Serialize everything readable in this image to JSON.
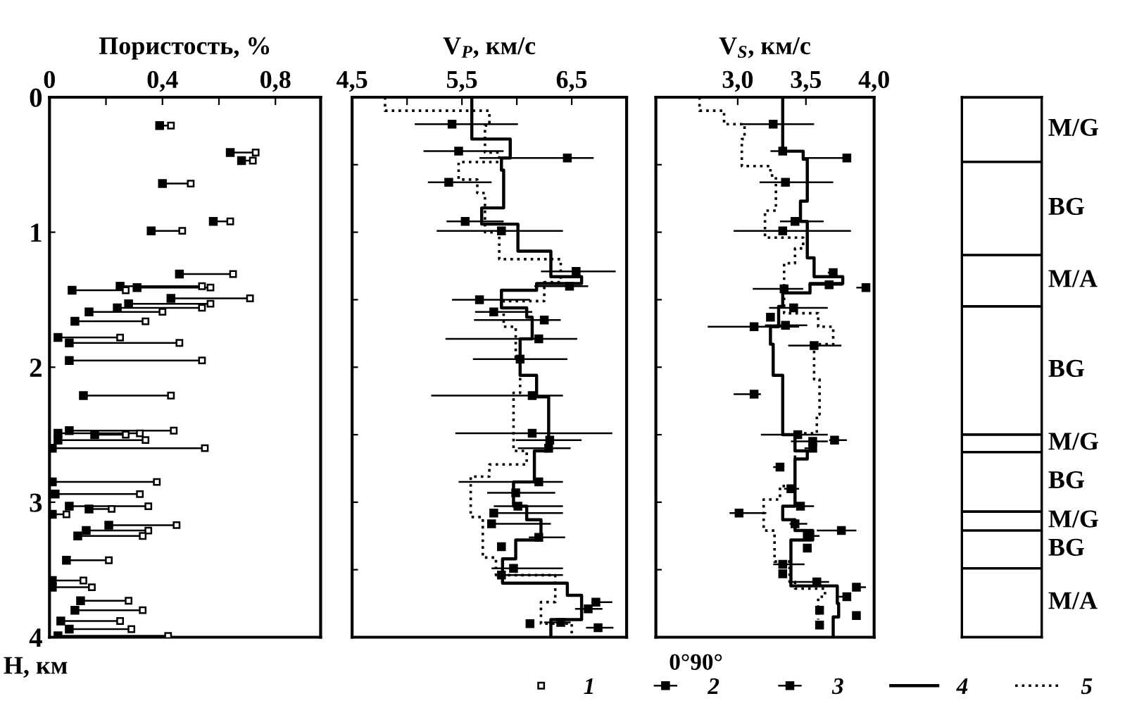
{
  "chart_data": [
    {
      "type": "scatter",
      "title": "Пористость, %",
      "ylabel": "H, км",
      "xlim": [
        0,
        0.96
      ],
      "xticks": [
        0,
        {
          "value": 0.2,
          "label": null
        },
        {
          "value": 0.4,
          "label": "0,4"
        },
        {
          "value": 0.6,
          "label": null
        },
        {
          "value": 0.8,
          "label": "0,8"
        }
      ],
      "ylim": [
        4,
        0
      ],
      "yticks": [
        0,
        1,
        2,
        3,
        4
      ],
      "legend": "bottom",
      "grid": false,
      "series": [
        {
          "name": "1",
          "color": "#ffffff",
          "marker": "square",
          "x": [
            0.43,
            0.73,
            0.72,
            0.5,
            0.64,
            0.47,
            0.65,
            0.54,
            0.57,
            0.27,
            0.71,
            0.57,
            0.54,
            0.4,
            0.34,
            0.25,
            0.46,
            0.54,
            0.43,
            0.44,
            0.32,
            0.27,
            0.34,
            0.55,
            0.38,
            0.32,
            0.35,
            0.22,
            0.06,
            0.45,
            0.35,
            0.33,
            0.21,
            0.12,
            0.15,
            0.28,
            0.33,
            0.25,
            0.29,
            0.42
          ],
          "values": [
            0.21,
            0.41,
            0.47,
            0.64,
            0.92,
            0.99,
            1.31,
            1.4,
            1.41,
            1.43,
            1.49,
            1.53,
            1.56,
            1.59,
            1.66,
            1.78,
            1.82,
            1.95,
            2.21,
            2.47,
            2.49,
            2.5,
            2.54,
            2.6,
            2.85,
            2.94,
            3.03,
            3.05,
            3.09,
            3.17,
            3.21,
            3.25,
            3.43,
            3.58,
            3.63,
            3.73,
            3.8,
            3.88,
            3.94,
            3.99
          ]
        },
        {
          "name": "2",
          "color": "#000000",
          "marker": "square",
          "x": [
            0.39,
            0.64,
            0.68,
            0.4,
            0.58,
            0.36,
            0.46,
            0.25,
            0.31,
            0.08,
            0.43,
            0.28,
            0.24,
            0.14,
            0.09,
            0.03,
            0.07,
            0.07,
            0.12,
            0.07,
            0.03,
            0.16,
            0.03,
            0.01,
            0.01,
            0.02,
            0.07,
            0.14,
            0.01,
            0.21,
            0.13,
            0.1,
            0.06,
            0.01,
            0.01,
            0.11,
            0.09,
            0.04,
            0.07,
            0.03
          ],
          "values": [
            0.21,
            0.41,
            0.47,
            0.64,
            0.92,
            0.99,
            1.31,
            1.4,
            1.41,
            1.43,
            1.49,
            1.53,
            1.56,
            1.59,
            1.66,
            1.78,
            1.82,
            1.95,
            2.21,
            2.47,
            2.49,
            2.5,
            2.54,
            2.6,
            2.85,
            2.94,
            3.03,
            3.05,
            3.09,
            3.17,
            3.21,
            3.25,
            3.43,
            3.58,
            3.63,
            3.73,
            3.8,
            3.88,
            3.94,
            3.99
          ],
          "xerrors": [
            [
              0.39,
              0.43
            ],
            [
              0.64,
              0.73
            ],
            [
              0.68,
              0.72
            ],
            [
              0.4,
              0.5
            ],
            [
              0.58,
              0.64
            ],
            [
              0.36,
              0.47
            ],
            [
              0.46,
              0.65
            ],
            [
              0.25,
              0.54
            ],
            [
              0.31,
              0.57
            ],
            [
              0.08,
              0.27
            ],
            [
              0.43,
              0.71
            ],
            [
              0.28,
              0.57
            ],
            [
              0.24,
              0.54
            ],
            [
              0.14,
              0.4
            ],
            [
              0.09,
              0.34
            ],
            [
              0.03,
              0.25
            ],
            [
              0.07,
              0.46
            ],
            [
              0.07,
              0.54
            ],
            [
              0.12,
              0.43
            ],
            [
              0.07,
              0.44
            ],
            [
              0.03,
              0.32
            ],
            [
              0.16,
              0.27
            ],
            [
              0.03,
              0.34
            ],
            [
              0.01,
              0.55
            ],
            [
              0.01,
              0.38
            ],
            [
              0.02,
              0.32
            ],
            [
              0.07,
              0.35
            ],
            [
              0.14,
              0.22
            ],
            [
              0.01,
              0.06
            ],
            [
              0.21,
              0.45
            ],
            [
              0.13,
              0.35
            ],
            [
              0.1,
              0.33
            ],
            [
              0.06,
              0.21
            ],
            [
              0.01,
              0.12
            ],
            [
              0.01,
              0.15
            ],
            [
              0.11,
              0.28
            ],
            [
              0.09,
              0.33
            ],
            [
              0.04,
              0.25
            ],
            [
              0.07,
              0.29
            ],
            [
              0.03,
              0.42
            ]
          ]
        }
      ]
    },
    {
      "type": "scatter",
      "title": "V$_{P}$, км/с",
      "xlim": [
        4.5,
        7.0
      ],
      "xticks": [
        {
          "value": 4.5,
          "label": "4,5"
        },
        {
          "value": 5.0,
          "label": null
        },
        {
          "value": 5.5,
          "label": "5,5"
        },
        {
          "value": 6.0,
          "label": null
        },
        {
          "value": 6.5,
          "label": "6,5"
        }
      ],
      "ylim": [
        4,
        0
      ],
      "tick_labels": "x",
      "legend": "bottom",
      "grid": false,
      "series": [
        {
          "name": "3",
          "type": "scatter",
          "color": "#000000",
          "marker": "square",
          "x": [
            5.41,
            5.47,
            6.46,
            5.38,
            5.53,
            5.86,
            6.54,
            6.48,
            5.66,
            5.79,
            6.25,
            6.2,
            6.03,
            6.14,
            6.14,
            6.3,
            6.29,
            6.2,
            5.99,
            6.01,
            5.79,
            5.77,
            6.2,
            5.86,
            5.97,
            5.86,
            6.72,
            6.65,
            6.4,
            6.74,
            6.12
          ],
          "values": [
            0.2,
            0.4,
            0.45,
            0.63,
            0.92,
            0.99,
            1.29,
            1.4,
            1.5,
            1.59,
            1.65,
            1.79,
            1.94,
            2.21,
            2.49,
            2.54,
            2.6,
            2.85,
            2.93,
            3.03,
            3.08,
            3.16,
            3.26,
            3.33,
            3.49,
            3.54,
            3.74,
            3.79,
            3.89,
            3.93,
            3.9
          ],
          "xerrors": [
            [
              5.07,
              6.01
            ],
            [
              5.15,
              5.88
            ],
            [
              5.66,
              6.7
            ],
            [
              5.19,
              5.77
            ],
            [
              5.36,
              5.88
            ],
            [
              5.27,
              6.42
            ],
            [
              6.22,
              6.9
            ],
            [
              6.16,
              6.65
            ],
            [
              5.41,
              6.12
            ],
            [
              5.62,
              6.14
            ],
            [
              5.61,
              6.4
            ],
            [
              5.35,
              6.55
            ],
            [
              5.6,
              6.46
            ],
            [
              5.22,
              6.42
            ],
            [
              5.44,
              6.87
            ],
            [
              5.99,
              6.59
            ],
            [
              6.01,
              6.49
            ],
            [
              5.47,
              6.42
            ],
            [
              5.73,
              6.35
            ],
            [
              5.79,
              6.42
            ],
            [
              5.77,
              6.42
            ],
            [
              5.77,
              6.31
            ],
            [
              6.11,
              6.44
            ],
            null,
            [
              5.77,
              6.42
            ],
            [
              5.83,
              6.42
            ],
            [
              6.68,
              6.87
            ],
            [
              6.53,
              6.78
            ],
            [
              6.25,
              6.49
            ],
            [
              6.63,
              6.88
            ],
            null
          ]
        },
        {
          "name": "4",
          "type": "line",
          "color": "#000000",
          "line_style": "solid",
          "marker": "none",
          "x": [
            5.59,
            5.59,
            5.94,
            5.94,
            5.86,
            5.86,
            5.88,
            5.88,
            5.68,
            5.68,
            6.01,
            6.01,
            6.31,
            6.31,
            6.59,
            6.59,
            6.18,
            6.18,
            5.86,
            5.86,
            6.09,
            6.09,
            6.14,
            6.14,
            6.03,
            6.03,
            6.18,
            6.18,
            6.29,
            6.29,
            6.16,
            6.16,
            5.97,
            5.97,
            6.09,
            6.09,
            6.22,
            6.22,
            5.99,
            5.99,
            5.87,
            5.87,
            6.46,
            6.46,
            6.59,
            6.59,
            6.31,
            6.31
          ],
          "values": [
            0,
            0.31,
            0.31,
            0.45,
            0.45,
            0.54,
            0.54,
            0.82,
            0.82,
            0.94,
            0.94,
            1.14,
            1.14,
            1.33,
            1.33,
            1.38,
            1.38,
            1.43,
            1.43,
            1.56,
            1.56,
            1.63,
            1.63,
            1.79,
            1.79,
            2.06,
            2.06,
            2.22,
            2.22,
            2.62,
            2.62,
            2.85,
            2.85,
            3.03,
            3.03,
            3.13,
            3.13,
            3.28,
            3.28,
            3.42,
            3.42,
            3.6,
            3.6,
            3.69,
            3.69,
            3.87,
            3.87,
            4.0
          ]
        },
        {
          "name": "5",
          "type": "line",
          "color": "#000000",
          "line_style": "dotted",
          "marker": "none",
          "x": [
            4.8,
            4.8,
            5.75,
            5.75,
            5.71,
            5.71,
            5.84,
            5.84,
            5.47,
            5.47,
            5.64,
            5.64,
            5.71,
            5.71,
            5.84,
            5.84,
            6.4,
            6.4,
            6.25,
            6.25,
            5.88,
            5.88,
            5.99,
            5.99,
            6.03,
            6.03,
            5.97,
            5.97,
            6.09,
            6.09,
            5.75,
            5.75,
            5.58,
            5.58,
            5.69,
            5.69,
            5.81,
            5.81,
            6.35,
            6.35,
            6.22,
            6.22,
            6.5,
            6.5
          ],
          "values": [
            0,
            0.1,
            0.1,
            0.21,
            0.21,
            0.41,
            0.41,
            0.48,
            0.48,
            0.61,
            0.61,
            0.71,
            0.71,
            1.0,
            1.0,
            1.2,
            1.2,
            1.37,
            1.37,
            1.51,
            1.51,
            1.7,
            1.7,
            1.93,
            1.93,
            2.19,
            2.19,
            2.62,
            2.62,
            2.72,
            2.72,
            2.81,
            2.81,
            3.11,
            3.11,
            3.41,
            3.41,
            3.54,
            3.54,
            3.74,
            3.74,
            3.9,
            3.9,
            4.0
          ]
        }
      ]
    },
    {
      "type": "scatter",
      "title": "V$_{S}$, км/с",
      "xlim": [
        2.4,
        4.0
      ],
      "xticks": [
        {
          "value": 3.0,
          "label": "3,0"
        },
        {
          "value": 3.5,
          "label": "3,5"
        },
        {
          "value": 4.0,
          "label": "4,0"
        }
      ],
      "ylim": [
        4,
        0
      ],
      "tick_labels": "x",
      "grid": false,
      "annotations": [
        "0°90°"
      ],
      "series": [
        {
          "type": "scatter",
          "color": "#000000",
          "marker": "square",
          "x": [
            3.26,
            3.33,
            3.8,
            3.35,
            3.42,
            3.33,
            3.7,
            3.67,
            3.94,
            3.34,
            3.41,
            3.24,
            3.12,
            3.35,
            3.56,
            3.12,
            3.44,
            3.55,
            3.71,
            3.55,
            3.31,
            3.39,
            3.46,
            3.01,
            3.42,
            3.76,
            3.51,
            3.51,
            3.33,
            3.33,
            3.58,
            3.87,
            3.8,
            3.6,
            3.87,
            3.6
          ],
          "values": [
            0.2,
            0.4,
            0.45,
            0.63,
            0.92,
            0.99,
            1.3,
            1.39,
            1.41,
            1.42,
            1.56,
            1.63,
            1.7,
            1.69,
            1.84,
            2.2,
            2.5,
            2.55,
            2.54,
            2.6,
            2.74,
            2.9,
            3.03,
            3.08,
            3.16,
            3.21,
            3.25,
            3.34,
            3.46,
            3.53,
            3.59,
            3.63,
            3.7,
            3.8,
            3.84,
            3.91
          ],
          "xerrors": [
            [
              3.03,
              3.56
            ],
            [
              3.24,
              3.48
            ],
            [
              3.48,
              3.83
            ],
            [
              3.16,
              3.7
            ],
            [
              3.31,
              3.63
            ],
            [
              2.97,
              3.83
            ],
            [
              3.66,
              3.72
            ],
            [
              3.52,
              3.77
            ],
            [
              3.87,
              3.96
            ],
            [
              3.11,
              3.48
            ],
            [
              3.23,
              3.66
            ],
            null,
            [
              2.78,
              3.45
            ],
            [
              3.2,
              3.51
            ],
            [
              3.37,
              3.76
            ],
            [
              2.97,
              3.17
            ],
            [
              3.17,
              3.66
            ],
            [
              3.39,
              3.66
            ],
            [
              3.67,
              3.8
            ],
            [
              3.49,
              3.56
            ],
            [
              3.26,
              3.34
            ],
            [
              3.34,
              3.45
            ],
            [
              3.42,
              3.56
            ],
            [
              2.94,
              3.21
            ],
            [
              3.38,
              3.51
            ],
            [
              3.58,
              3.87
            ],
            [
              3.48,
              3.6
            ],
            null,
            [
              3.26,
              3.49
            ],
            null,
            [
              3.39,
              3.67
            ],
            [
              3.85,
              3.94
            ],
            [
              3.74,
              3.83
            ],
            null,
            null,
            null
          ]
        },
        {
          "type": "line",
          "color": "#000000",
          "line_style": "solid",
          "marker": "none",
          "x": [
            3.33,
            3.33,
            3.48,
            3.48,
            3.51,
            3.51,
            3.46,
            3.46,
            3.51,
            3.51,
            3.56,
            3.56,
            3.77,
            3.77,
            3.53,
            3.53,
            3.33,
            3.33,
            3.3,
            3.3,
            3.24,
            3.24,
            3.26,
            3.26,
            3.33,
            3.33,
            3.42,
            3.42,
            3.51,
            3.51,
            3.42,
            3.42,
            3.33,
            3.33,
            3.42,
            3.42,
            3.55,
            3.55,
            3.39,
            3.39,
            3.73,
            3.73,
            3.74,
            3.74,
            3.7,
            3.7
          ],
          "values": [
            0,
            0.4,
            0.4,
            0.46,
            0.46,
            0.77,
            0.77,
            0.92,
            0.92,
            1.19,
            1.19,
            1.33,
            1.33,
            1.38,
            1.38,
            1.45,
            1.45,
            1.55,
            1.55,
            1.7,
            1.7,
            1.83,
            1.83,
            2.06,
            2.06,
            2.5,
            2.5,
            2.62,
            2.62,
            2.68,
            2.68,
            3.03,
            3.03,
            3.13,
            3.13,
            3.21,
            3.21,
            3.28,
            3.28,
            3.62,
            3.62,
            3.75,
            3.75,
            3.85,
            3.85,
            4.0
          ]
        },
        {
          "type": "line",
          "color": "#000000",
          "line_style": "dotted",
          "marker": "none",
          "x": [
            2.72,
            2.72,
            2.9,
            2.9,
            3.05,
            3.05,
            3.03,
            3.03,
            3.24,
            3.24,
            3.28,
            3.28,
            3.2,
            3.2,
            3.48,
            3.48,
            3.42,
            3.42,
            3.34,
            3.34,
            3.59,
            3.59,
            3.7,
            3.7,
            3.56,
            3.56,
            3.6,
            3.6,
            3.58,
            3.58,
            3.42,
            3.42,
            3.31,
            3.31,
            3.19,
            3.19,
            3.27,
            3.27,
            3.38,
            3.38,
            3.42,
            3.42,
            3.64,
            3.64,
            3.59,
            3.59
          ],
          "values": [
            0,
            0.1,
            0.1,
            0.2,
            0.2,
            0.31,
            0.31,
            0.51,
            0.51,
            0.58,
            0.58,
            0.84,
            0.84,
            1.04,
            1.04,
            1.12,
            1.12,
            1.23,
            1.23,
            1.6,
            1.6,
            1.7,
            1.7,
            1.83,
            1.83,
            2.09,
            2.09,
            2.35,
            2.35,
            2.49,
            2.49,
            2.88,
            2.88,
            2.98,
            2.98,
            3.21,
            3.21,
            3.44,
            3.44,
            3.59,
            3.59,
            3.64,
            3.64,
            3.7,
            3.7,
            3.87
          ]
        }
      ]
    },
    {
      "type": "bar",
      "stacked": true,
      "categories": [
        null
      ],
      "ylim": [
        4,
        0
      ],
      "tick_labels": false,
      "series": [
        {
          "name": "M/G",
          "color": "#ffffff",
          "values": [
            0.48
          ]
        },
        {
          "name": "BG",
          "color": "#ffffff",
          "values": [
            0.69
          ]
        },
        {
          "name": "M/A",
          "color": "#ffffff",
          "values": [
            0.38
          ]
        },
        {
          "name": "BG",
          "color": "#ffffff",
          "values": [
            0.95
          ]
        },
        {
          "name": "M/G",
          "color": "#ffffff",
          "values": [
            0.13
          ]
        },
        {
          "name": "BG",
          "color": "#ffffff",
          "values": [
            0.44
          ]
        },
        {
          "name": "M/G",
          "color": "#ffffff",
          "values": [
            0.14
          ]
        },
        {
          "name": "BG",
          "color": "#ffffff",
          "values": [
            0.28
          ]
        },
        {
          "name": "M/A",
          "color": "#ffffff",
          "values": [
            0.51
          ]
        }
      ]
    }
  ]
}
